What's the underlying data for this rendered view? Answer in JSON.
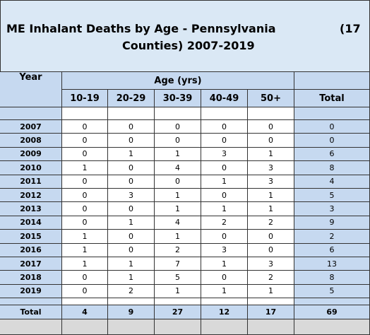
{
  "title": {
    "line1": "ME Inhalant Deaths by Age - Pennsylvania",
    "right": "(17",
    "line2": "Counties) 2007-2019"
  },
  "header": {
    "year": "Year",
    "group": "Age (yrs)",
    "columns": [
      "10-19",
      "20-29",
      "30-39",
      "40-49",
      "50+"
    ],
    "total": "Total"
  },
  "rows": [
    {
      "year": "2007",
      "values": [
        0,
        0,
        0,
        0,
        0
      ],
      "total": 0
    },
    {
      "year": "2008",
      "values": [
        0,
        0,
        0,
        0,
        0
      ],
      "total": 0
    },
    {
      "year": "2009",
      "values": [
        0,
        1,
        1,
        3,
        1
      ],
      "total": 6
    },
    {
      "year": "2010",
      "values": [
        1,
        0,
        4,
        0,
        3
      ],
      "total": 8
    },
    {
      "year": "2011",
      "values": [
        0,
        0,
        0,
        1,
        3
      ],
      "total": 4
    },
    {
      "year": "2012",
      "values": [
        0,
        3,
        1,
        0,
        1
      ],
      "total": 5
    },
    {
      "year": "2013",
      "values": [
        0,
        0,
        1,
        1,
        1
      ],
      "total": 3
    },
    {
      "year": "2014",
      "values": [
        0,
        1,
        4,
        2,
        2
      ],
      "total": 9
    },
    {
      "year": "2015",
      "values": [
        1,
        0,
        1,
        0,
        0
      ],
      "total": 2
    },
    {
      "year": "2016",
      "values": [
        1,
        0,
        2,
        3,
        0
      ],
      "total": 6
    },
    {
      "year": "2017",
      "values": [
        1,
        1,
        7,
        1,
        3
      ],
      "total": 13
    },
    {
      "year": "2018",
      "values": [
        0,
        1,
        5,
        0,
        2
      ],
      "total": 8
    },
    {
      "year": "2019",
      "values": [
        0,
        2,
        1,
        1,
        1
      ],
      "total": 5
    }
  ],
  "totals": {
    "label": "Total",
    "values": [
      4,
      9,
      27,
      12,
      17
    ],
    "total": 69
  }
}
